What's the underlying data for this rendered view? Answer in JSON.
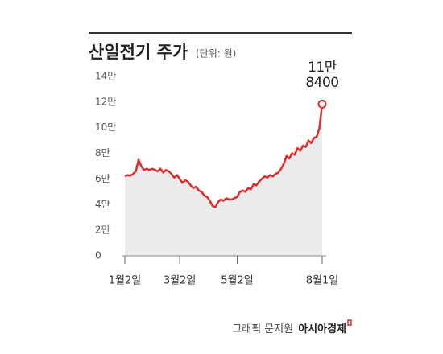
{
  "chart_data": {
    "type": "line",
    "title": "산일전기 주가",
    "subtitle": "(단위: 원)",
    "categories": [
      "1월2일",
      null,
      null,
      null,
      null,
      null,
      null,
      null,
      null,
      null,
      null,
      null,
      null,
      null,
      null,
      null,
      null,
      null,
      null,
      null,
      "3월2일",
      null,
      null,
      null,
      null,
      null,
      null,
      null,
      null,
      null,
      null,
      null,
      null,
      null,
      null,
      null,
      null,
      null,
      null,
      null,
      null,
      "5월2일",
      null,
      null,
      null,
      null,
      null,
      null,
      null,
      null,
      null,
      null,
      null,
      null,
      null,
      null,
      null,
      null,
      null,
      null,
      null,
      null,
      null,
      null,
      null,
      null,
      null,
      null,
      null,
      null,
      null,
      null,
      "8월1일"
    ],
    "series": [
      {
        "color": "#e02b2b",
        "values": [
          62000,
          63000,
          62500,
          64000,
          66000,
          75000,
          70000,
          67000,
          68000,
          67000,
          68000,
          67000,
          66000,
          68000,
          65000,
          67000,
          66000,
          64000,
          61000,
          63000,
          60000,
          57000,
          59000,
          58000,
          55000,
          53000,
          54000,
          51000,
          50000,
          47000,
          46000,
          43000,
          39000,
          38000,
          42000,
          44000,
          43000,
          45000,
          44000,
          44000,
          45000,
          46000,
          50000,
          51000,
          50000,
          53000,
          52000,
          56000,
          55000,
          58000,
          60000,
          62000,
          61000,
          63000,
          62000,
          64000,
          65000,
          68000,
          72000,
          78000,
          76000,
          80000,
          79000,
          84000,
          82000,
          86000,
          85000,
          90000,
          88000,
          92000,
          93000,
          100000,
          118400
        ],
        "value_labels": [
          null,
          null,
          null,
          null,
          null,
          null,
          null,
          null,
          null,
          null,
          null,
          null,
          null,
          null,
          null,
          null,
          null,
          null,
          null,
          null,
          null,
          null,
          null,
          null,
          null,
          null,
          null,
          null,
          null,
          null,
          null,
          null,
          null,
          null,
          null,
          null,
          null,
          null,
          null,
          null,
          null,
          null,
          null,
          null,
          null,
          null,
          null,
          null,
          null,
          null,
          null,
          null,
          null,
          null,
          null,
          null,
          null,
          null,
          null,
          null,
          null,
          null,
          null,
          null,
          null,
          null,
          null,
          null,
          null,
          null,
          null,
          null,
          "11만 8400"
        ]
      }
    ],
    "ylim": [
      0,
      140000
    ],
    "yticks": [
      0,
      {
        "value": 20000,
        "label": "2만"
      },
      {
        "value": 40000,
        "label": "4만"
      },
      {
        "value": 60000,
        "label": "6만"
      },
      {
        "value": 80000,
        "label": "8만"
      },
      {
        "value": 100000,
        "label": "10만"
      },
      {
        "value": 120000,
        "label": "12만"
      },
      {
        "value": 140000,
        "label": "14만"
      }
    ],
    "grid": false,
    "area_color": "#ebebeb",
    "credit": "그래픽 문지원",
    "source": "아시아경제"
  }
}
